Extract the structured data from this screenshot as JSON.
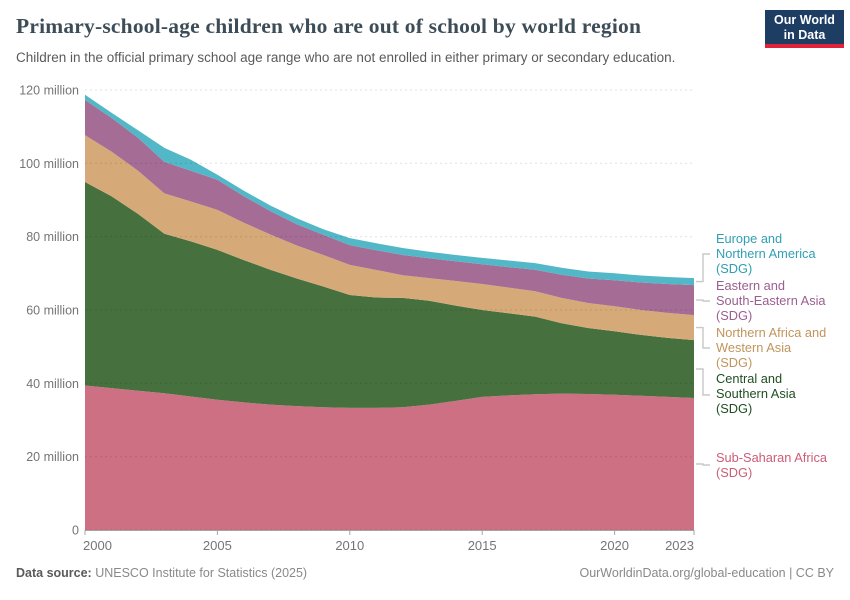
{
  "header": {
    "title": "Primary-school-age children who are out of school by world region",
    "subtitle": "Children in the official primary school age range who are not enrolled in either primary or secondary education.",
    "logo": {
      "line1": "Our World",
      "line2": "in Data"
    }
  },
  "footer": {
    "source_label": "Data source:",
    "source_text": " UNESCO Institute for Statistics (2025)",
    "credit": "OurWorldinData.org/global-education | CC BY"
  },
  "colors": {
    "logo_navy": "#1d3d63",
    "logo_red": "#e0233c",
    "grid": "rgba(0,0,0,0.12)",
    "axis": "#a5a5a5",
    "tick_label": "#757575",
    "connector": "#c8c8c8"
  },
  "chart_data": {
    "type": "area",
    "stacked": true,
    "title": "Primary-school-age children who are out of school by world region",
    "xlabel": "",
    "ylabel": "",
    "unit": "million children",
    "ylim": [
      0,
      120
    ],
    "grid": "horizontal-dashed",
    "legend_position": "right",
    "x": [
      2000,
      2001,
      2002,
      2003,
      2004,
      2005,
      2006,
      2007,
      2008,
      2009,
      2010,
      2011,
      2012,
      2013,
      2014,
      2015,
      2016,
      2017,
      2018,
      2019,
      2020,
      2021,
      2022,
      2023
    ],
    "x_ticks": [
      {
        "v": 2000,
        "label": "2000"
      },
      {
        "v": 2005,
        "label": "2005"
      },
      {
        "v": 2010,
        "label": "2010"
      },
      {
        "v": 2015,
        "label": "2015"
      },
      {
        "v": 2020,
        "label": "2020"
      },
      {
        "v": 2023,
        "label": "2023"
      }
    ],
    "y_ticks": [
      {
        "v": 0,
        "label": "0"
      },
      {
        "v": 20,
        "label": "20 million"
      },
      {
        "v": 40,
        "label": "40 million"
      },
      {
        "v": 60,
        "label": "60 million"
      },
      {
        "v": 80,
        "label": "80 million"
      },
      {
        "v": 100,
        "label": "100 million"
      },
      {
        "v": 120,
        "label": "120 million"
      }
    ],
    "series": [
      {
        "id": "ssa",
        "name": "Sub-Saharan Africa (SDG)",
        "legend_lines": [
          "Sub-Saharan Africa",
          "(SDG)"
        ],
        "color": "#ce7083",
        "label_color": "#cc5d78",
        "values": [
          39.4,
          38.7,
          38.0,
          37.3,
          36.4,
          35.5,
          34.8,
          34.2,
          33.8,
          33.5,
          33.3,
          33.3,
          33.5,
          34.2,
          35.2,
          36.3,
          36.7,
          37.0,
          37.2,
          37.1,
          36.9,
          36.6,
          36.3,
          36.0
        ]
      },
      {
        "id": "csa",
        "name": "Central and Southern Asia (SDG)",
        "legend_lines": [
          "Central and",
          "Southern Asia",
          "(SDG)"
        ],
        "color": "#47703f",
        "label_color": "#1f4e22",
        "values": [
          55.5,
          52.3,
          48.2,
          43.5,
          42.3,
          40.9,
          38.8,
          36.8,
          34.8,
          32.9,
          30.8,
          30.1,
          29.8,
          28.3,
          26.0,
          23.7,
          22.4,
          21.2,
          19.2,
          18.0,
          17.3,
          16.6,
          16.1,
          15.8
        ]
      },
      {
        "id": "nawa",
        "name": "Northern Africa and Western Asia (SDG)",
        "legend_lines": [
          "Northern Africa and",
          "Western Asia",
          "(SDG)"
        ],
        "color": "#d6aa78",
        "label_color": "#c2945c",
        "values": [
          12.8,
          12.2,
          11.8,
          11.0,
          10.9,
          10.9,
          10.2,
          9.6,
          9.0,
          8.6,
          8.2,
          7.5,
          6.2,
          6.2,
          6.7,
          7.1,
          7.0,
          6.9,
          6.9,
          6.8,
          6.8,
          6.8,
          6.8,
          6.8
        ]
      },
      {
        "id": "esea",
        "name": "Eastern and South-Eastern Asia (SDG)",
        "legend_lines": [
          "Eastern and",
          "South-Eastern Asia",
          "(SDG)"
        ],
        "color": "#a56d96",
        "label_color": "#9c5e90",
        "values": [
          9.6,
          9.2,
          9.0,
          8.6,
          8.4,
          8.2,
          7.2,
          6.4,
          5.8,
          5.5,
          5.4,
          5.4,
          5.5,
          5.4,
          5.4,
          5.4,
          5.6,
          5.9,
          6.3,
          6.7,
          7.1,
          7.5,
          7.9,
          8.2
        ]
      },
      {
        "id": "ena",
        "name": "Europe and Northern America (SDG)",
        "legend_lines": [
          "Europe and",
          "Northern America",
          "(SDG)"
        ],
        "color": "#52b7c6",
        "label_color": "#2f9fb3",
        "values": [
          1.4,
          1.4,
          2.0,
          3.8,
          3.0,
          1.4,
          1.5,
          1.5,
          1.6,
          1.5,
          1.9,
          1.9,
          1.9,
          1.8,
          1.7,
          1.7,
          1.8,
          1.8,
          1.9,
          1.9,
          1.9,
          1.9,
          1.9,
          1.9
        ]
      }
    ]
  }
}
